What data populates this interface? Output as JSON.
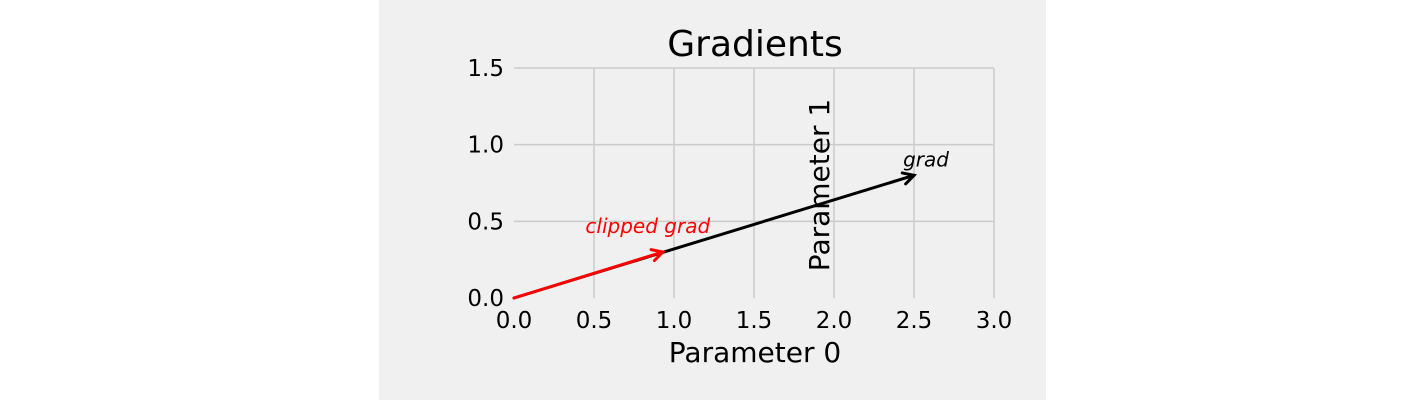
{
  "chart_data": {
    "type": "vector",
    "title": "Gradients",
    "xlabel": "Parameter 0",
    "ylabel": "Parameter 1",
    "xlim": [
      0.0,
      3.0
    ],
    "ylim": [
      0.0,
      1.5
    ],
    "xticks": [
      "0.0",
      "0.5",
      "1.0",
      "1.5",
      "2.0",
      "2.5",
      "3.0"
    ],
    "yticks": [
      "0.0",
      "0.5",
      "1.0",
      "1.5"
    ],
    "grid": true,
    "vectors": [
      {
        "label": "grad",
        "x0": 0.0,
        "y0": 0.0,
        "x1": 2.5,
        "y1": 0.8,
        "color": "#000000"
      },
      {
        "label": "clipped grad",
        "x0": 0.0,
        "y0": 0.0,
        "x1": 0.93,
        "y1": 0.3,
        "color": "#ff0000"
      }
    ]
  }
}
